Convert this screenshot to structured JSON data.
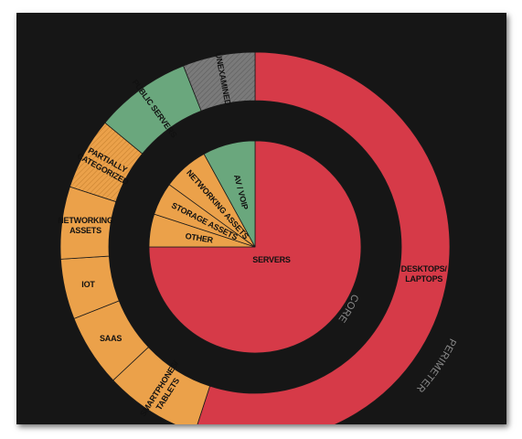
{
  "chart_data": {
    "type": "pie",
    "rings": [
      {
        "name": "CORE",
        "segments": [
          {
            "label": "SERVERS",
            "value": 75,
            "color": "#d63a48"
          },
          {
            "label": "OTHER",
            "value": 5,
            "color": "#eba14a"
          },
          {
            "label": "STORAGE ASSETS",
            "value": 5,
            "color": "#eba14a"
          },
          {
            "label": "NETWORKING ASSETS",
            "value": 7,
            "color": "#eba14a"
          },
          {
            "label": "AV / VOIP",
            "value": 8,
            "color": "#6aa77d"
          }
        ]
      },
      {
        "name": "PERIMETER",
        "segments": [
          {
            "label": "DESKTOPS/\nLAPTOPS",
            "value": 55,
            "color": "#d63a48"
          },
          {
            "label": "SMARTPHONES/\nTABLETS",
            "value": 8,
            "color": "#eba14a"
          },
          {
            "label": "SAAS",
            "value": 6,
            "color": "#eba14a"
          },
          {
            "label": "IOT",
            "value": 5,
            "color": "#eba14a"
          },
          {
            "label": "NETWORKING\nASSETS",
            "value": 6,
            "color": "#eba14a"
          },
          {
            "label": "PARTIALLY\nCATEGORIZED",
            "value": 6,
            "color": "#eba14a",
            "hatched": true
          },
          {
            "label": "PUBLIC SERVERS",
            "value": 8,
            "color": "#6aa77d"
          },
          {
            "label": "UNEXAMINED",
            "value": 6,
            "color": "#7a7a7a",
            "hatched": true
          }
        ]
      }
    ]
  }
}
